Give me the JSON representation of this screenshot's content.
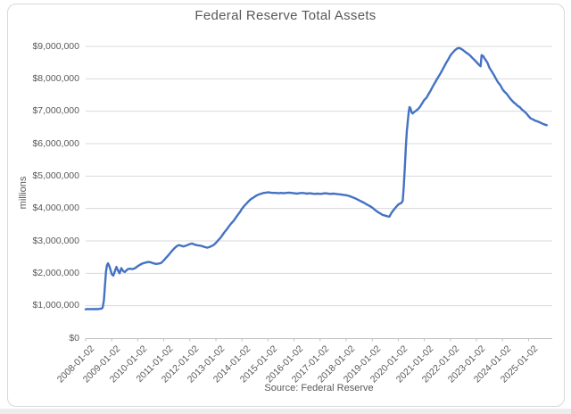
{
  "chart_data": {
    "type": "line",
    "title": "Federal Reserve Total Assets",
    "ylabel": "millions",
    "xlabel": "",
    "source_note": "Source: Federal Reserve",
    "legend": "none",
    "grid": true,
    "ylim": [
      0,
      9000000
    ],
    "xlim": [
      2008.0,
      2025.9
    ],
    "y_tick_values": [
      0,
      1000000,
      2000000,
      3000000,
      4000000,
      5000000,
      6000000,
      7000000,
      8000000,
      9000000
    ],
    "y_tick_labels": [
      "$0",
      "$1,000,000",
      "$2,000,000",
      "$3,000,000",
      "$4,000,000",
      "$5,000,000",
      "$6,000,000",
      "$7,000,000",
      "$8,000,000",
      "$9,000,000"
    ],
    "x_tick_positions": [
      2008,
      2009,
      2010,
      2011,
      2012,
      2013,
      2014,
      2015,
      2016,
      2017,
      2018,
      2019,
      2020,
      2021,
      2022,
      2023,
      2024,
      2025
    ],
    "x_tick_labels": [
      "2008-01-02",
      "2009-01-02",
      "2010-01-02",
      "2011-01-02",
      "2012-01-02",
      "2013-01-02",
      "2014-01-02",
      "2015-01-02",
      "2016-01-02",
      "2017-01-02",
      "2018-01-02",
      "2019-01-02",
      "2020-01-02",
      "2021-01-02",
      "2022-01-02",
      "2023-01-02",
      "2024-01-02",
      "2025-01-02"
    ],
    "series": [
      {
        "name": "Federal Reserve Total Assets (millions of dollars)",
        "color": "#4472C4",
        "points": [
          [
            2008.0,
            890000
          ],
          [
            2008.08,
            900000
          ],
          [
            2008.17,
            893000
          ],
          [
            2008.25,
            900000
          ],
          [
            2008.33,
            895000
          ],
          [
            2008.42,
            900000
          ],
          [
            2008.5,
            898000
          ],
          [
            2008.55,
            912000
          ],
          [
            2008.6,
            905000
          ],
          [
            2008.65,
            940000
          ],
          [
            2008.7,
            1150000
          ],
          [
            2008.74,
            1600000
          ],
          [
            2008.78,
            2050000
          ],
          [
            2008.82,
            2250000
          ],
          [
            2008.86,
            2310000
          ],
          [
            2008.9,
            2240000
          ],
          [
            2008.94,
            2150000
          ],
          [
            2009.0,
            1980000
          ],
          [
            2009.06,
            1930000
          ],
          [
            2009.12,
            2060000
          ],
          [
            2009.18,
            2200000
          ],
          [
            2009.24,
            2090000
          ],
          [
            2009.3,
            2000000
          ],
          [
            2009.37,
            2160000
          ],
          [
            2009.44,
            2070000
          ],
          [
            2009.5,
            2040000
          ],
          [
            2009.56,
            2090000
          ],
          [
            2009.62,
            2130000
          ],
          [
            2009.7,
            2140000
          ],
          [
            2009.8,
            2130000
          ],
          [
            2009.9,
            2160000
          ],
          [
            2010.0,
            2220000
          ],
          [
            2010.1,
            2270000
          ],
          [
            2010.2,
            2310000
          ],
          [
            2010.3,
            2330000
          ],
          [
            2010.4,
            2350000
          ],
          [
            2010.5,
            2340000
          ],
          [
            2010.6,
            2310000
          ],
          [
            2010.7,
            2290000
          ],
          [
            2010.8,
            2300000
          ],
          [
            2010.9,
            2320000
          ],
          [
            2011.0,
            2400000
          ],
          [
            2011.1,
            2490000
          ],
          [
            2011.2,
            2580000
          ],
          [
            2011.3,
            2680000
          ],
          [
            2011.4,
            2770000
          ],
          [
            2011.5,
            2840000
          ],
          [
            2011.58,
            2870000
          ],
          [
            2011.66,
            2850000
          ],
          [
            2011.75,
            2830000
          ],
          [
            2011.85,
            2850000
          ],
          [
            2011.92,
            2880000
          ],
          [
            2012.0,
            2900000
          ],
          [
            2012.08,
            2920000
          ],
          [
            2012.17,
            2890000
          ],
          [
            2012.25,
            2870000
          ],
          [
            2012.33,
            2860000
          ],
          [
            2012.42,
            2850000
          ],
          [
            2012.5,
            2830000
          ],
          [
            2012.58,
            2810000
          ],
          [
            2012.66,
            2790000
          ],
          [
            2012.75,
            2810000
          ],
          [
            2012.83,
            2840000
          ],
          [
            2012.92,
            2880000
          ],
          [
            2013.0,
            2940000
          ],
          [
            2013.08,
            3010000
          ],
          [
            2013.17,
            3090000
          ],
          [
            2013.25,
            3180000
          ],
          [
            2013.33,
            3270000
          ],
          [
            2013.42,
            3360000
          ],
          [
            2013.5,
            3450000
          ],
          [
            2013.58,
            3530000
          ],
          [
            2013.67,
            3610000
          ],
          [
            2013.75,
            3700000
          ],
          [
            2013.83,
            3790000
          ],
          [
            2013.92,
            3890000
          ],
          [
            2014.0,
            3990000
          ],
          [
            2014.08,
            4070000
          ],
          [
            2014.17,
            4150000
          ],
          [
            2014.25,
            4220000
          ],
          [
            2014.33,
            4280000
          ],
          [
            2014.42,
            4330000
          ],
          [
            2014.5,
            4370000
          ],
          [
            2014.58,
            4410000
          ],
          [
            2014.67,
            4440000
          ],
          [
            2014.75,
            4460000
          ],
          [
            2014.83,
            4480000
          ],
          [
            2014.92,
            4490000
          ],
          [
            2015.0,
            4500000
          ],
          [
            2015.1,
            4490000
          ],
          [
            2015.2,
            4480000
          ],
          [
            2015.3,
            4480000
          ],
          [
            2015.4,
            4470000
          ],
          [
            2015.5,
            4480000
          ],
          [
            2015.6,
            4470000
          ],
          [
            2015.7,
            4480000
          ],
          [
            2015.8,
            4490000
          ],
          [
            2015.9,
            4480000
          ],
          [
            2016.0,
            4470000
          ],
          [
            2016.1,
            4460000
          ],
          [
            2016.2,
            4470000
          ],
          [
            2016.3,
            4480000
          ],
          [
            2016.4,
            4470000
          ],
          [
            2016.5,
            4460000
          ],
          [
            2016.6,
            4470000
          ],
          [
            2016.7,
            4460000
          ],
          [
            2016.8,
            4450000
          ],
          [
            2016.9,
            4460000
          ],
          [
            2017.0,
            4450000
          ],
          [
            2017.1,
            4460000
          ],
          [
            2017.2,
            4470000
          ],
          [
            2017.3,
            4460000
          ],
          [
            2017.4,
            4450000
          ],
          [
            2017.5,
            4460000
          ],
          [
            2017.6,
            4450000
          ],
          [
            2017.7,
            4440000
          ],
          [
            2017.8,
            4430000
          ],
          [
            2017.9,
            4420000
          ],
          [
            2018.0,
            4410000
          ],
          [
            2018.1,
            4390000
          ],
          [
            2018.2,
            4360000
          ],
          [
            2018.3,
            4330000
          ],
          [
            2018.4,
            4290000
          ],
          [
            2018.5,
            4250000
          ],
          [
            2018.6,
            4210000
          ],
          [
            2018.7,
            4170000
          ],
          [
            2018.8,
            4120000
          ],
          [
            2018.9,
            4080000
          ],
          [
            2019.0,
            4030000
          ],
          [
            2019.1,
            3960000
          ],
          [
            2019.2,
            3900000
          ],
          [
            2019.3,
            3850000
          ],
          [
            2019.4,
            3800000
          ],
          [
            2019.5,
            3780000
          ],
          [
            2019.58,
            3760000
          ],
          [
            2019.66,
            3750000
          ],
          [
            2019.72,
            3840000
          ],
          [
            2019.78,
            3910000
          ],
          [
            2019.85,
            3980000
          ],
          [
            2019.92,
            4050000
          ],
          [
            2020.0,
            4120000
          ],
          [
            2020.06,
            4150000
          ],
          [
            2020.12,
            4170000
          ],
          [
            2020.17,
            4240000
          ],
          [
            2020.21,
            4650000
          ],
          [
            2020.25,
            5250000
          ],
          [
            2020.29,
            5900000
          ],
          [
            2020.33,
            6400000
          ],
          [
            2020.37,
            6720000
          ],
          [
            2020.4,
            6980000
          ],
          [
            2020.43,
            7130000
          ],
          [
            2020.47,
            7090000
          ],
          [
            2020.51,
            6970000
          ],
          [
            2020.55,
            6930000
          ],
          [
            2020.6,
            6970000
          ],
          [
            2020.67,
            7010000
          ],
          [
            2020.75,
            7060000
          ],
          [
            2020.83,
            7130000
          ],
          [
            2020.92,
            7250000
          ],
          [
            2021.0,
            7350000
          ],
          [
            2021.08,
            7410000
          ],
          [
            2021.17,
            7540000
          ],
          [
            2021.25,
            7650000
          ],
          [
            2021.33,
            7770000
          ],
          [
            2021.42,
            7900000
          ],
          [
            2021.5,
            8010000
          ],
          [
            2021.58,
            8110000
          ],
          [
            2021.67,
            8240000
          ],
          [
            2021.75,
            8360000
          ],
          [
            2021.83,
            8480000
          ],
          [
            2021.92,
            8600000
          ],
          [
            2022.0,
            8720000
          ],
          [
            2022.08,
            8800000
          ],
          [
            2022.17,
            8880000
          ],
          [
            2022.25,
            8930000
          ],
          [
            2022.31,
            8950000
          ],
          [
            2022.38,
            8940000
          ],
          [
            2022.46,
            8900000
          ],
          [
            2022.54,
            8850000
          ],
          [
            2022.62,
            8800000
          ],
          [
            2022.7,
            8760000
          ],
          [
            2022.78,
            8700000
          ],
          [
            2022.86,
            8630000
          ],
          [
            2022.94,
            8570000
          ],
          [
            2023.02,
            8500000
          ],
          [
            2023.1,
            8430000
          ],
          [
            2023.16,
            8390000
          ],
          [
            2023.2,
            8730000
          ],
          [
            2023.26,
            8700000
          ],
          [
            2023.33,
            8610000
          ],
          [
            2023.42,
            8500000
          ],
          [
            2023.5,
            8340000
          ],
          [
            2023.58,
            8240000
          ],
          [
            2023.67,
            8120000
          ],
          [
            2023.75,
            8000000
          ],
          [
            2023.83,
            7890000
          ],
          [
            2023.92,
            7800000
          ],
          [
            2024.0,
            7680000
          ],
          [
            2024.08,
            7600000
          ],
          [
            2024.17,
            7530000
          ],
          [
            2024.25,
            7440000
          ],
          [
            2024.33,
            7360000
          ],
          [
            2024.42,
            7280000
          ],
          [
            2024.5,
            7230000
          ],
          [
            2024.58,
            7170000
          ],
          [
            2024.67,
            7120000
          ],
          [
            2024.75,
            7050000
          ],
          [
            2024.83,
            7000000
          ],
          [
            2024.92,
            6930000
          ],
          [
            2025.0,
            6850000
          ],
          [
            2025.08,
            6780000
          ],
          [
            2025.17,
            6750000
          ],
          [
            2025.25,
            6710000
          ],
          [
            2025.33,
            6690000
          ],
          [
            2025.42,
            6660000
          ],
          [
            2025.5,
            6630000
          ],
          [
            2025.58,
            6600000
          ],
          [
            2025.7,
            6570000
          ]
        ]
      }
    ],
    "colors": {
      "line": "#4472C4",
      "gridline": "#D9D9D9",
      "axis_line": "#BFBFBF",
      "text": "#595959",
      "chart_border": "#D9D9D9"
    }
  }
}
